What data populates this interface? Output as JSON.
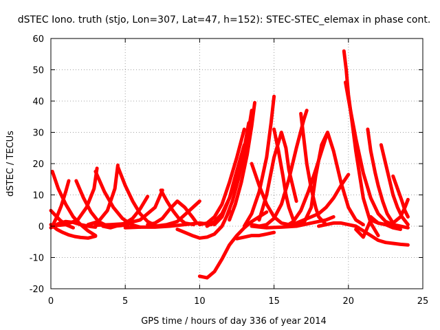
{
  "chart_data": {
    "type": "scatter",
    "title": "dSTEC Iono. truth (stjo, Lon=307, Lat=47, h=152): STEC-STEC_elemax in phase cont.",
    "xlabel": "GPS time / hours of day 336 of year 2014",
    "ylabel": "dSTEC  / TECUs",
    "xlim": [
      0,
      25
    ],
    "ylim": [
      -20,
      60
    ],
    "xticks": [
      "0",
      "5",
      "10",
      "15",
      "20",
      "25"
    ],
    "yticks": [
      "-20",
      "-10",
      "0",
      "10",
      "20",
      "30",
      "40",
      "50",
      "60"
    ],
    "grid": true,
    "marker": "+",
    "color": "#ff0000",
    "series": [
      {
        "x": [
          0.1,
          0.5,
          1.0,
          1.5,
          2.0,
          2.5,
          3.0
        ],
        "y": [
          17.5,
          12,
          7,
          3,
          0.5,
          -1.5,
          -3
        ]
      },
      {
        "x": [
          0.0,
          0.4,
          0.8,
          1.2,
          1.6,
          2.0,
          2.5,
          3.0
        ],
        "y": [
          0.5,
          -1,
          -2,
          -2.8,
          -3.3,
          -3.6,
          -3.8,
          -3.2
        ]
      },
      {
        "x": [
          0.0,
          0.3,
          0.6,
          1.0,
          1.5
        ],
        "y": [
          5,
          3.5,
          2,
          0.5,
          -0.5
        ]
      },
      {
        "x": [
          0.0,
          0.5,
          1.0,
          1.5,
          2.0,
          2.5,
          3.0
        ],
        "y": [
          -0.5,
          0.8,
          1.5,
          1.2,
          0.5,
          0,
          -0.3
        ]
      },
      {
        "x": [
          0.1,
          0.4,
          0.7,
          1.0,
          1.2
        ],
        "y": [
          0,
          3,
          6.5,
          11,
          14.5
        ]
      },
      {
        "x": [
          1.7,
          2.2,
          2.7,
          3.2,
          3.7,
          4.2,
          4.7,
          5.2
        ],
        "y": [
          14.5,
          9,
          4.5,
          1.5,
          0.3,
          0,
          0.2,
          0.5
        ]
      },
      {
        "x": [
          0.3,
          1.0,
          1.8,
          2.4,
          2.9,
          3.1
        ],
        "y": [
          0.2,
          0.5,
          2,
          6,
          12,
          18.5
        ]
      },
      {
        "x": [
          3.0,
          3.6,
          4.2,
          4.8,
          5.4,
          6.0
        ],
        "y": [
          17.5,
          11,
          6,
          2.5,
          0.5,
          -0.3
        ]
      },
      {
        "x": [
          2.5,
          3.2,
          3.8,
          4.3,
          4.5
        ],
        "y": [
          0.5,
          1.5,
          5,
          12,
          19.5
        ]
      },
      {
        "x": [
          4.5,
          5.0,
          5.5,
          6.0,
          6.5,
          7.0
        ],
        "y": [
          19,
          13,
          8,
          4,
          1.5,
          0.3
        ]
      },
      {
        "x": [
          3.5,
          4.0,
          4.5,
          5.0,
          5.5,
          6.0,
          6.5
        ],
        "y": [
          0,
          -0.5,
          0.2,
          1,
          2.5,
          5.5,
          9.5
        ]
      },
      {
        "x": [
          3.0,
          4.0,
          5.0,
          6.0,
          7.0,
          7.5
        ],
        "y": [
          0.3,
          0.5,
          0.8,
          2,
          6,
          11.5
        ]
      },
      {
        "x": [
          7.4,
          7.8,
          8.2,
          8.6,
          9.0,
          9.6
        ],
        "y": [
          11.5,
          8,
          5,
          2.5,
          1,
          0.5
        ]
      },
      {
        "x": [
          6.5,
          7.0,
          7.5,
          8.0,
          8.5,
          9.0,
          9.5,
          9.8
        ],
        "y": [
          0.5,
          1,
          2.5,
          5.5,
          8,
          6,
          3,
          1
        ]
      },
      {
        "x": [
          7.0,
          7.8,
          8.5,
          9.2,
          10.0
        ],
        "y": [
          0,
          0.5,
          1.5,
          4.5,
          8
        ]
      },
      {
        "x": [
          5.0,
          6.0,
          7.0,
          8.0,
          9.0,
          10.0,
          10.8
        ],
        "y": [
          -0.5,
          -0.3,
          -0.3,
          0,
          0.5,
          1,
          0.5
        ]
      },
      {
        "x": [
          8.5,
          9.0,
          9.5,
          10.0,
          10.5,
          11.0,
          11.5,
          12.0
        ],
        "y": [
          -1,
          -2,
          -3,
          -3.8,
          -3.5,
          -2.5,
          0,
          5
        ]
      },
      {
        "x": [
          10.0,
          10.5,
          11.0,
          11.5,
          12.0,
          12.5,
          13.0,
          13.5,
          14.0,
          14.5
        ],
        "y": [
          -16,
          -16.5,
          -14.5,
          -10.5,
          -6,
          -3,
          -0.5,
          1.5,
          3,
          4.5
        ]
      },
      {
        "x": [
          10.5,
          11.0,
          11.5,
          12.0,
          12.5,
          13.0,
          13.3
        ],
        "y": [
          0,
          1.5,
          4,
          9,
          16,
          25,
          33
        ]
      },
      {
        "x": [
          10.0,
          10.5,
          11.0,
          11.5,
          12.0,
          12.5,
          13.0
        ],
        "y": [
          0.5,
          1,
          3,
          7,
          14,
          22,
          31
        ]
      },
      {
        "x": [
          11.0,
          11.5,
          12.0,
          12.4,
          12.7,
          13.0
        ],
        "y": [
          0.5,
          3,
          9,
          16,
          21,
          26
        ]
      },
      {
        "x": [
          11.8,
          12.2,
          12.6,
          13.0,
          13.3,
          13.5
        ],
        "y": [
          3,
          8,
          15,
          23,
          31,
          37
        ]
      },
      {
        "x": [
          12.0,
          12.4,
          12.8,
          13.2,
          13.5,
          13.7
        ],
        "y": [
          2,
          7,
          14,
          23,
          32,
          39.5
        ]
      },
      {
        "x": [
          12.5,
          13.0,
          13.5,
          14.0,
          14.5,
          15.0
        ],
        "y": [
          -4,
          -3.5,
          -3,
          -3,
          -2.5,
          -2
        ]
      },
      {
        "x": [
          13.5,
          14.0,
          14.5,
          15.0,
          15.5,
          16.0
        ],
        "y": [
          20,
          13,
          7,
          3,
          1,
          0.5
        ]
      },
      {
        "x": [
          13.0,
          13.5,
          14.0,
          14.5,
          14.8,
          15.0
        ],
        "y": [
          0,
          4,
          11,
          22,
          33,
          41.5
        ]
      },
      {
        "x": [
          13.5,
          14.0,
          14.5,
          15.0,
          15.5,
          16.0,
          16.5,
          17.0,
          17.2
        ],
        "y": [
          0.5,
          0,
          0.5,
          2.5,
          7,
          15,
          25,
          34,
          37
        ]
      },
      {
        "x": [
          14.0,
          14.5,
          15.0,
          15.5,
          15.8,
          16.0,
          16.5
        ],
        "y": [
          2,
          10,
          22,
          30,
          25,
          18,
          8
        ]
      },
      {
        "x": [
          15.0,
          15.3,
          15.6,
          15.8,
          16.0,
          16.3
        ],
        "y": [
          31,
          24,
          16,
          10,
          6,
          2
        ]
      },
      {
        "x": [
          13.5,
          14.5,
          15.5,
          16.5,
          17.5,
          18.5,
          19.0
        ],
        "y": [
          0,
          -0.5,
          -0.3,
          0,
          1,
          2,
          3
        ]
      },
      {
        "x": [
          16.8,
          17.0,
          17.2,
          17.5,
          17.8,
          18.0,
          18.5
        ],
        "y": [
          36,
          28,
          20,
          12,
          6,
          3,
          0.5
        ]
      },
      {
        "x": [
          15.8,
          16.3,
          16.8,
          17.3,
          17.8,
          18.2,
          18.5
        ],
        "y": [
          0,
          1.5,
          5,
          11,
          18,
          24,
          28.5
        ]
      },
      {
        "x": [
          16.0,
          16.5,
          17.0,
          17.5,
          18.0,
          18.5,
          19.0,
          19.5,
          20.0
        ],
        "y": [
          0.5,
          1,
          2,
          3,
          4,
          6,
          9,
          13,
          16.5
        ]
      },
      {
        "x": [
          16.5,
          17.0,
          17.5,
          17.8,
          18.2,
          18.6,
          19.0,
          19.5,
          20.0,
          20.5,
          21.0
        ],
        "y": [
          0,
          1,
          6,
          16,
          26,
          30,
          24,
          14,
          6,
          2,
          0.5
        ]
      },
      {
        "x": [
          18.0,
          18.5,
          19.0,
          19.5,
          20.0,
          20.5,
          21.0,
          21.5,
          22.0,
          22.5,
          23.0,
          23.5,
          24.0
        ],
        "y": [
          0,
          0.5,
          1,
          1,
          0.5,
          0,
          -1.5,
          -3,
          -4.5,
          -5.2,
          -5.5,
          -5.8,
          -6
        ]
      },
      {
        "x": [
          19.7,
          19.85,
          20.0,
          20.2,
          20.5,
          20.8,
          21.0,
          21.5,
          22.0
        ],
        "y": [
          56,
          50,
          42,
          35,
          24,
          15,
          9,
          1,
          -3
        ]
      },
      {
        "x": [
          19.8,
          20.1,
          20.5,
          21.0,
          21.5,
          22.0,
          22.5,
          23.0,
          23.5,
          24.0
        ],
        "y": [
          46,
          38,
          28,
          17,
          9,
          4,
          1.5,
          0.5,
          0,
          -0.5
        ]
      },
      {
        "x": [
          21.3,
          21.5,
          21.8,
          22.0,
          22.3,
          22.6,
          23.0
        ],
        "y": [
          31,
          24,
          17,
          13,
          8,
          4,
          1
        ]
      },
      {
        "x": [
          22.2,
          22.5,
          22.8,
          23.0,
          23.3,
          23.6,
          24.0
        ],
        "y": [
          26,
          20,
          14,
          10,
          6,
          3,
          0.5
        ]
      },
      {
        "x": [
          23.0,
          23.3,
          23.6,
          23.8,
          24.0
        ],
        "y": [
          16,
          12,
          8,
          5,
          3
        ]
      },
      {
        "x": [
          21.5,
          22.0,
          22.5,
          23.0,
          23.5,
          23.8,
          24.0
        ],
        "y": [
          3,
          1,
          0.5,
          1,
          3,
          6,
          8.5
        ]
      },
      {
        "x": [
          20.5,
          21.0,
          21.5,
          22.0,
          22.5,
          23.0,
          23.5
        ],
        "y": [
          -1,
          -3.5,
          2,
          1,
          0.5,
          -0.5,
          -1
        ]
      }
    ]
  }
}
